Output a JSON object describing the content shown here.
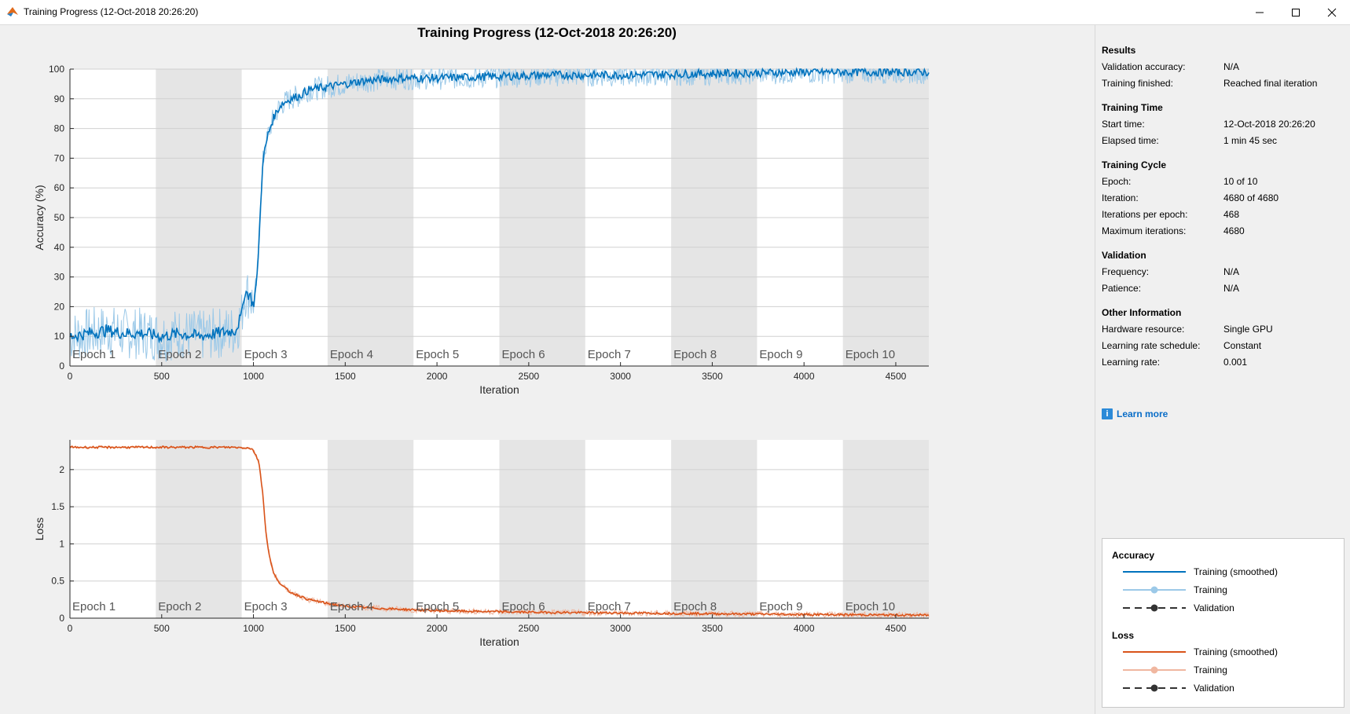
{
  "window": {
    "title": "Training Progress (12-Oct-2018 20:26:20)",
    "controls": [
      "minimize-icon",
      "maximize-icon",
      "close-icon"
    ]
  },
  "figure_title": "Training Progress (12-Oct-2018 20:26:20)",
  "colors": {
    "accuracy_smoothed": "#0072bd",
    "accuracy_raw": "#9cc9e8",
    "loss_smoothed": "#d95319",
    "loss_raw": "#f0b7a0",
    "epoch_shade": "#e5e5e5",
    "link": "#0a6ec8"
  },
  "chart_data": [
    {
      "type": "line",
      "name": "accuracy",
      "xlabel": "Iteration",
      "ylabel": "Accuracy (%)",
      "xlim": [
        0,
        4680
      ],
      "ylim": [
        0,
        100
      ],
      "xticks": [
        0,
        500,
        1000,
        1500,
        2000,
        2500,
        3000,
        3500,
        4000,
        4500
      ],
      "yticks": [
        0,
        10,
        20,
        30,
        40,
        50,
        60,
        70,
        80,
        90,
        100
      ],
      "grid": true,
      "epoch_labels": [
        "Epoch 1",
        "Epoch 2",
        "Epoch 3",
        "Epoch 4",
        "Epoch 5",
        "Epoch 6",
        "Epoch 7",
        "Epoch 8",
        "Epoch 9",
        "Epoch 10"
      ],
      "epoch_length": 468,
      "series": [
        {
          "name": "Training (smoothed)",
          "x": [
            0,
            100,
            200,
            300,
            400,
            500,
            600,
            700,
            800,
            900,
            936,
            950,
            980,
            1000,
            1020,
            1040,
            1050,
            1060,
            1070,
            1080,
            1100,
            1120,
            1150,
            1200,
            1250,
            1300,
            1400,
            1500,
            1600,
            1800,
            2000,
            2300,
            2600,
            3000,
            3500,
            4000,
            4680
          ],
          "y": [
            10,
            11,
            12,
            11,
            11,
            10,
            11,
            10,
            11,
            12,
            17,
            25,
            24,
            20,
            30,
            55,
            68,
            72,
            75,
            78,
            82,
            85,
            88,
            90,
            91,
            93,
            94,
            95,
            96,
            97,
            97,
            97.5,
            98,
            98,
            98.5,
            99,
            99
          ]
        }
      ],
      "raw_noise": 4
    },
    {
      "type": "line",
      "name": "loss",
      "xlabel": "Iteration",
      "ylabel": "Loss",
      "xlim": [
        0,
        4680
      ],
      "ylim": [
        0,
        2.4
      ],
      "xticks": [
        0,
        500,
        1000,
        1500,
        2000,
        2500,
        3000,
        3500,
        4000,
        4500
      ],
      "yticks": [
        0,
        0.5,
        1,
        1.5,
        2
      ],
      "yticklabels": [
        "0",
        "0.5",
        "1",
        "1.5",
        "2"
      ],
      "grid": true,
      "epoch_labels": [
        "Epoch 1",
        "Epoch 2",
        "Epoch 3",
        "Epoch 4",
        "Epoch 5",
        "Epoch 6",
        "Epoch 7",
        "Epoch 8",
        "Epoch 9",
        "Epoch 10"
      ],
      "epoch_length": 468,
      "series": [
        {
          "name": "Training (smoothed)",
          "x": [
            0,
            500,
            900,
            980,
            1000,
            1030,
            1050,
            1070,
            1090,
            1110,
            1150,
            1200,
            1300,
            1400,
            1500,
            1700,
            2000,
            2500,
            3000,
            3500,
            4000,
            4680
          ],
          "y": [
            2.3,
            2.3,
            2.3,
            2.29,
            2.26,
            2.1,
            1.7,
            1.1,
            0.8,
            0.6,
            0.45,
            0.35,
            0.25,
            0.2,
            0.16,
            0.13,
            0.1,
            0.08,
            0.07,
            0.06,
            0.05,
            0.04
          ]
        }
      ],
      "raw_noise": 0.04
    }
  ],
  "sidebar": {
    "results": {
      "title": "Results",
      "rows": [
        {
          "label": "Validation accuracy:",
          "value": "N/A"
        },
        {
          "label": "Training finished:",
          "value": "Reached final iteration"
        }
      ]
    },
    "training_time": {
      "title": "Training Time",
      "rows": [
        {
          "label": "Start time:",
          "value": "12-Oct-2018 20:26:20"
        },
        {
          "label": "Elapsed time:",
          "value": "1 min 45 sec"
        }
      ]
    },
    "training_cycle": {
      "title": "Training Cycle",
      "rows": [
        {
          "label": "Epoch:",
          "value": "10 of 10"
        },
        {
          "label": "Iteration:",
          "value": "4680 of 4680"
        },
        {
          "label": "Iterations per epoch:",
          "value": "468"
        },
        {
          "label": "Maximum iterations:",
          "value": "4680"
        }
      ]
    },
    "validation": {
      "title": "Validation",
      "rows": [
        {
          "label": "Frequency:",
          "value": "N/A"
        },
        {
          "label": "Patience:",
          "value": "N/A"
        }
      ]
    },
    "other": {
      "title": "Other Information",
      "rows": [
        {
          "label": "Hardware resource:",
          "value": "Single GPU"
        },
        {
          "label": "Learning rate schedule:",
          "value": "Constant"
        },
        {
          "label": "Learning rate:",
          "value": "0.001"
        }
      ]
    },
    "learn_more": "Learn more"
  },
  "legend": {
    "accuracy_title": "Accuracy",
    "loss_title": "Loss",
    "accuracy_items": [
      "Training (smoothed)",
      "Training",
      "Validation"
    ],
    "loss_items": [
      "Training (smoothed)",
      "Training",
      "Validation"
    ]
  }
}
